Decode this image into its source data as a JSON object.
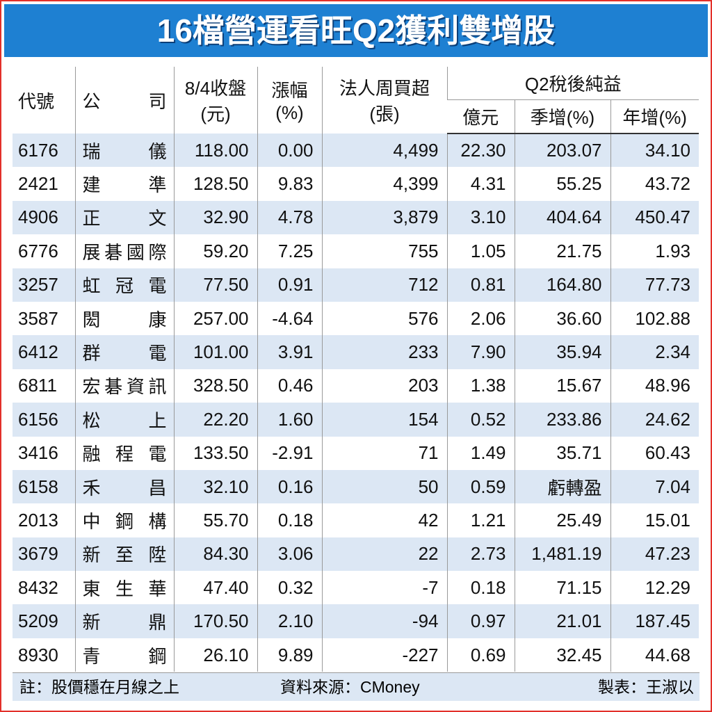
{
  "header": {
    "title": "16檔營運看旺Q2獲利雙增股"
  },
  "table": {
    "columns": {
      "code": "代號",
      "company": "公司",
      "close": [
        "8/4收盤",
        "(元)"
      ],
      "change": [
        "漲幅",
        "(%)"
      ],
      "institutional": [
        "法人周買超",
        "(張)"
      ],
      "q2": "Q2稅後純益",
      "q2_sub": [
        "億元",
        "季增(%)",
        "年增(%)"
      ]
    },
    "rows": [
      [
        "6176",
        "瑞儀",
        "118.00",
        "0.00",
        "4,499",
        "22.30",
        "203.07",
        "34.10"
      ],
      [
        "2421",
        "建準",
        "128.50",
        "9.83",
        "4,399",
        "4.31",
        "55.25",
        "43.72"
      ],
      [
        "4906",
        "正文",
        "32.90",
        "4.78",
        "3,879",
        "3.10",
        "404.64",
        "450.47"
      ],
      [
        "6776",
        "展碁國際",
        "59.20",
        "7.25",
        "755",
        "1.05",
        "21.75",
        "1.93"
      ],
      [
        "3257",
        "虹冠電",
        "77.50",
        "0.91",
        "712",
        "0.81",
        "164.80",
        "77.73"
      ],
      [
        "3587",
        "閎康",
        "257.00",
        "-4.64",
        "576",
        "2.06",
        "36.60",
        "102.88"
      ],
      [
        "6412",
        "群電",
        "101.00",
        "3.91",
        "233",
        "7.90",
        "35.94",
        "2.34"
      ],
      [
        "6811",
        "宏碁資訊",
        "328.50",
        "0.46",
        "203",
        "1.38",
        "15.67",
        "48.96"
      ],
      [
        "6156",
        "松上",
        "22.20",
        "1.60",
        "154",
        "0.52",
        "233.86",
        "24.62"
      ],
      [
        "3416",
        "融程電",
        "133.50",
        "-2.91",
        "71",
        "1.49",
        "35.71",
        "60.43"
      ],
      [
        "6158",
        "禾昌",
        "32.10",
        "0.16",
        "50",
        "0.59",
        "虧轉盈",
        "7.04"
      ],
      [
        "2013",
        "中鋼構",
        "55.70",
        "0.18",
        "42",
        "1.21",
        "25.49",
        "15.01"
      ],
      [
        "3679",
        "新至陞",
        "84.30",
        "3.06",
        "22",
        "2.73",
        "1,481.19",
        "47.23"
      ],
      [
        "8432",
        "東生華",
        "47.40",
        "0.32",
        "-7",
        "0.18",
        "71.15",
        "12.29"
      ],
      [
        "5209",
        "新鼎",
        "170.50",
        "2.10",
        "-94",
        "0.97",
        "21.01",
        "187.45"
      ],
      [
        "8930",
        "青鋼",
        "26.10",
        "9.89",
        "-227",
        "0.69",
        "32.45",
        "44.68"
      ]
    ]
  },
  "footer": {
    "note": "註：股價穩在月線之上",
    "source": "資料來源：CMoney",
    "author": "製表：王淑以"
  }
}
